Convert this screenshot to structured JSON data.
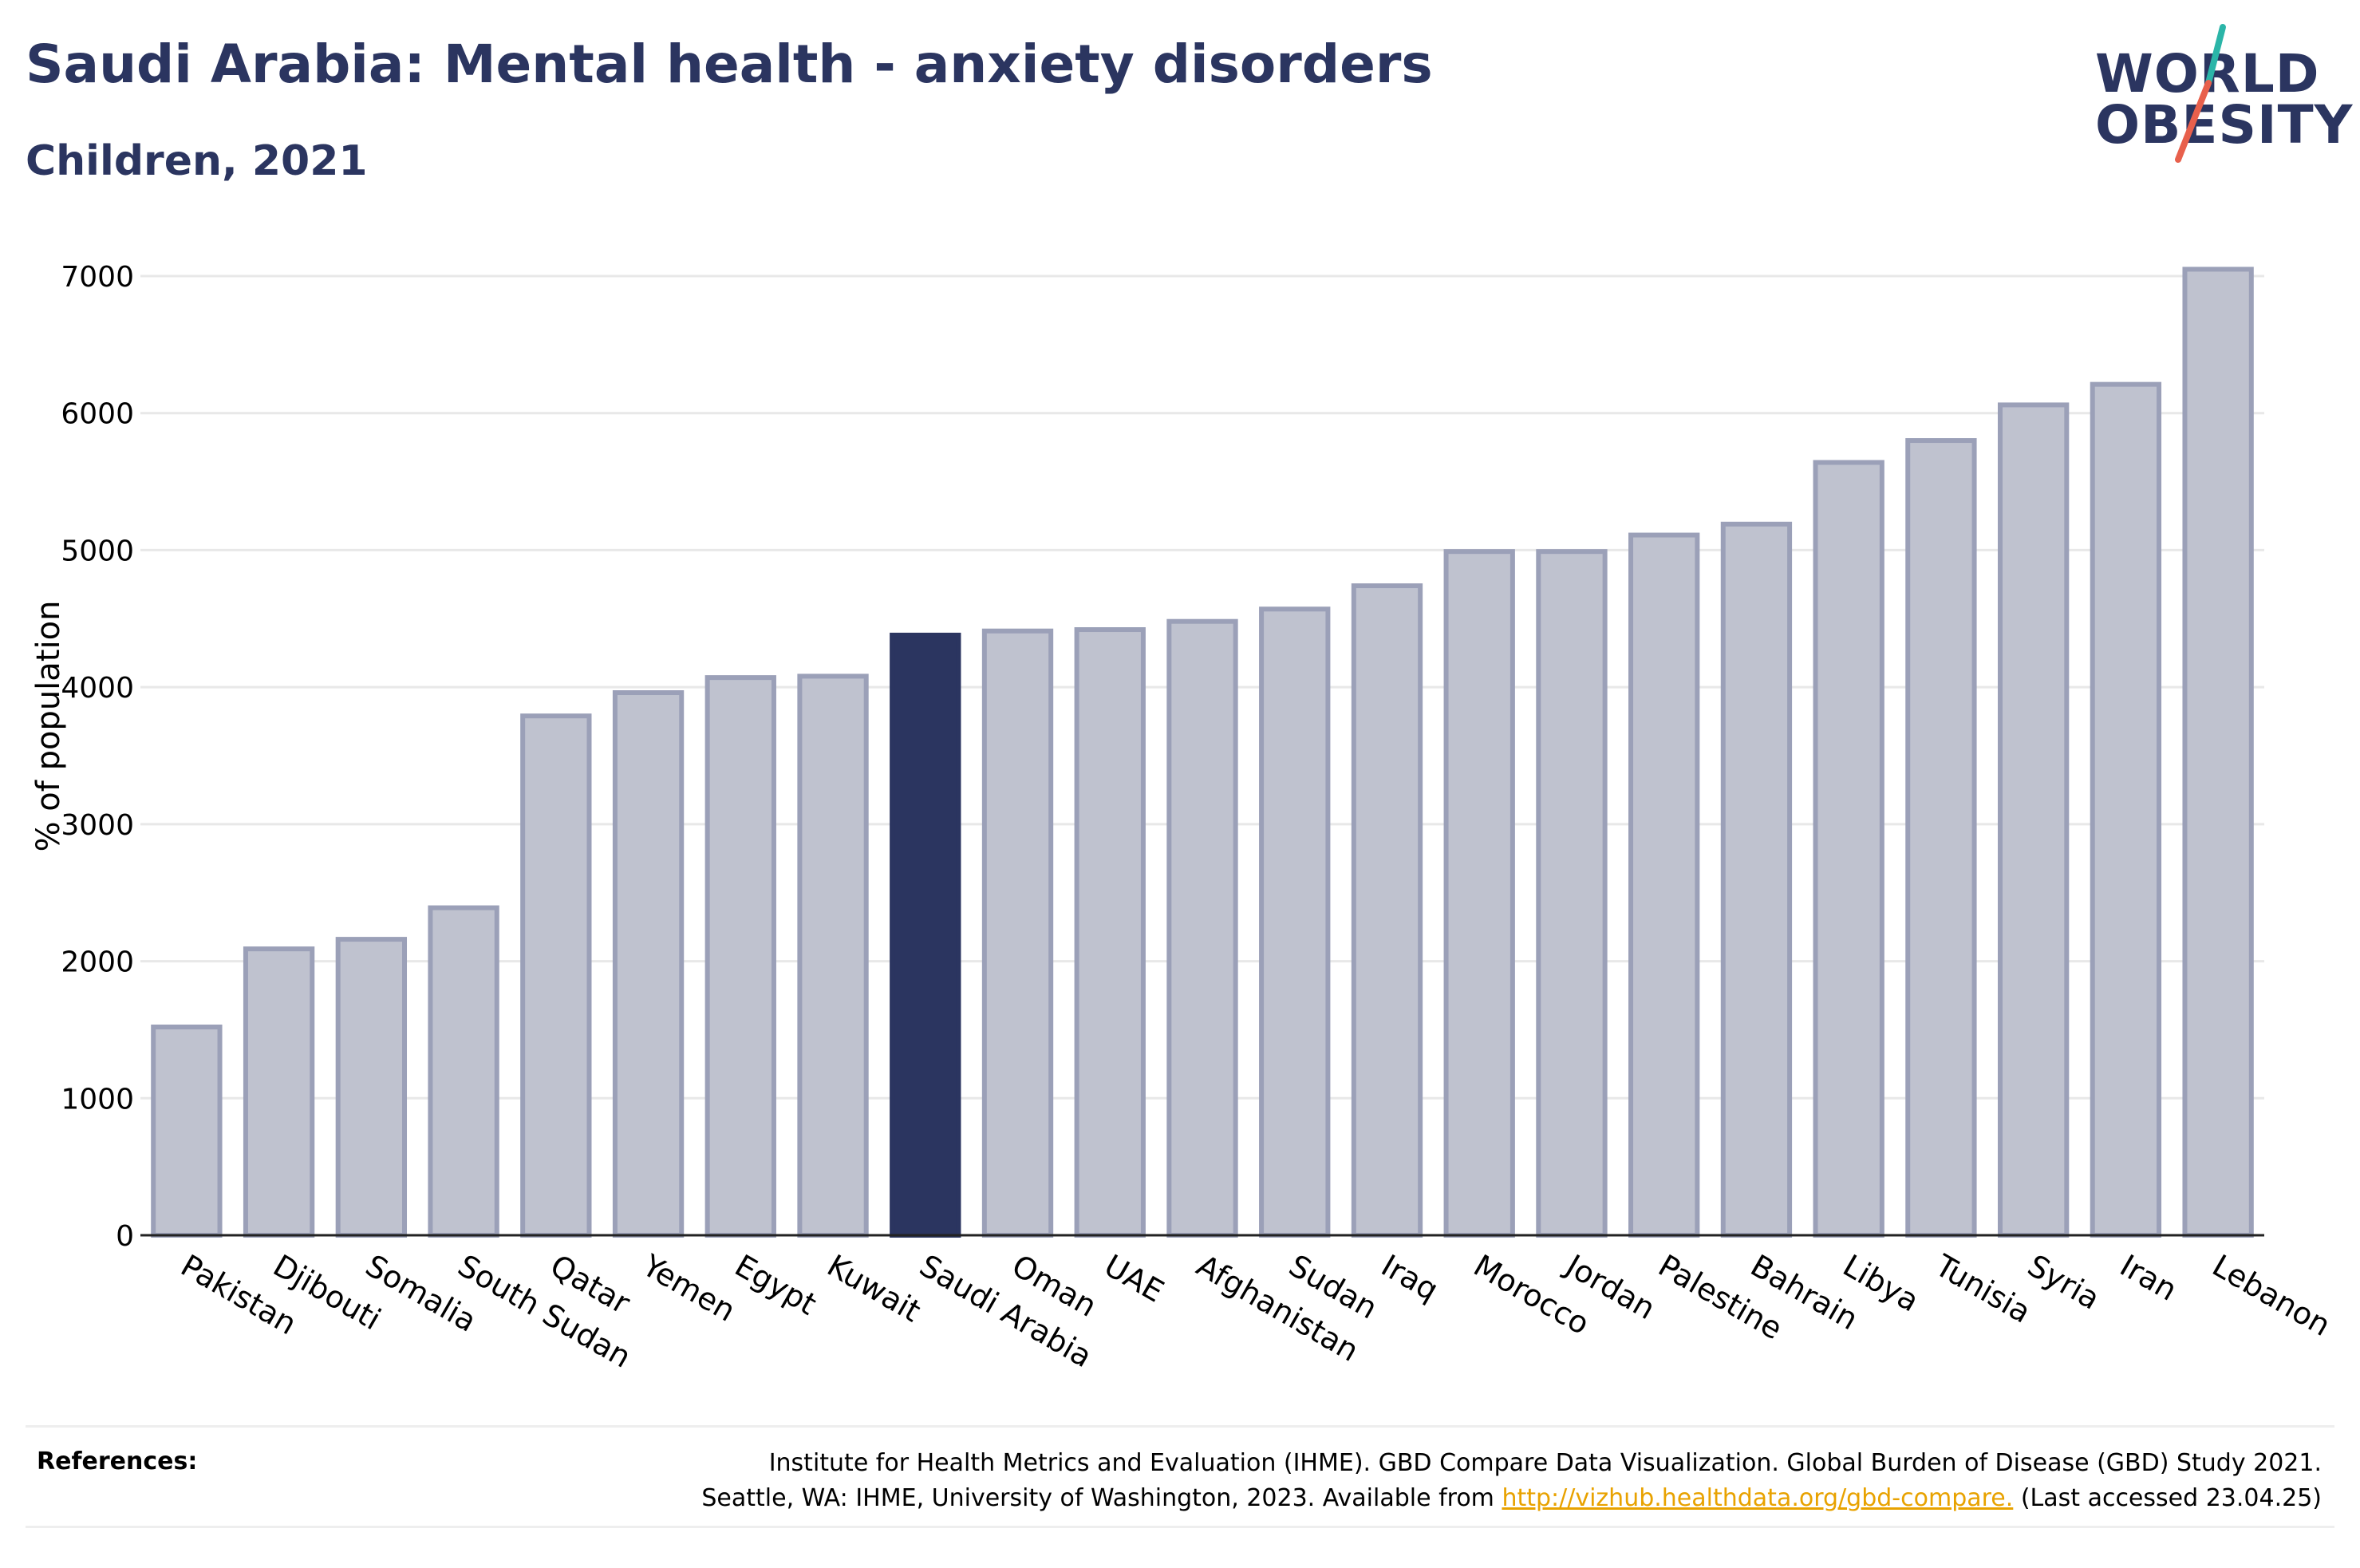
{
  "header": {
    "title": "Saudi Arabia: Mental health - anxiety disorders",
    "subtitle": "Children, 2021"
  },
  "logo": {
    "line1": "WORLD",
    "line2": "OBESITY",
    "accent_colors": [
      "#2bb5a8",
      "#e8604c"
    ]
  },
  "colors": {
    "bar_default": "#bfc2cf",
    "bar_default_stroke": "#9ba0b8",
    "bar_highlight": "#2b3560",
    "text": "#2b3560",
    "grid": "#e8e8e8",
    "link": "#e8a200"
  },
  "chart_data": {
    "type": "bar",
    "ylabel": "% of population",
    "ylim": [
      0,
      7000
    ],
    "yticks": [
      "0",
      "1000",
      "2000",
      "3000",
      "4000",
      "5000",
      "6000",
      "7000"
    ],
    "grid": "horizontal",
    "highlight": "Saudi Arabia",
    "categories": [
      "Pakistan",
      "Djibouti",
      "Somalia",
      "South Sudan",
      "Qatar",
      "Yemen",
      "Egypt",
      "Kuwait",
      "Saudi Arabia",
      "Oman",
      "UAE",
      "Afghanistan",
      "Sudan",
      "Iraq",
      "Morocco",
      "Jordan",
      "Palestine",
      "Bahrain",
      "Libya",
      "Tunisia",
      "Syria",
      "Iran",
      "Lebanon"
    ],
    "values": [
      1520,
      2090,
      2160,
      2390,
      3790,
      3960,
      4070,
      4080,
      4380,
      4410,
      4420,
      4480,
      4570,
      4740,
      4990,
      4990,
      5110,
      5190,
      5640,
      5800,
      6060,
      6210,
      7050
    ]
  },
  "references": {
    "label": "References:",
    "line1": "Institute for Health Metrics and Evaluation (IHME). GBD Compare Data Visualization. Global Burden of Disease (GBD) Study 2021.",
    "line2_prefix": "Seattle, WA: IHME, University of Washington, 2023. Available from ",
    "link": "http://vizhub.healthdata.org/gbd-compare.",
    "line2_suffix": " (Last accessed 23.04.25)"
  }
}
